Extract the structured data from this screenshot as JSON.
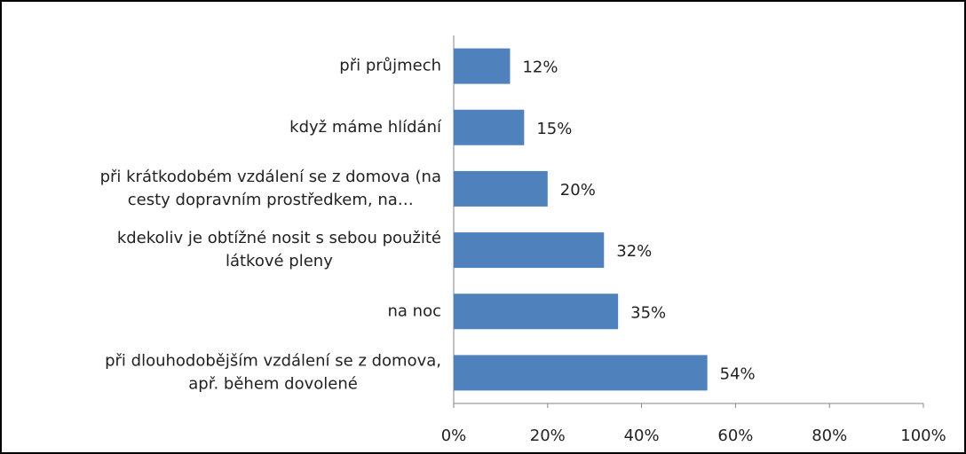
{
  "chart_data": {
    "type": "bar",
    "orientation": "horizontal",
    "categories": [
      "při průjmech",
      "když máme hlídání",
      "při krátkodobém vzdálení se z domova (na\ncesty dopravním prostředkem, na…",
      "kdekoliv je obtížné nosit s sebou použité\nlátkové pleny",
      "na noc",
      "při dlouhodobějším vzdálení se z domova,\např. během dovolené"
    ],
    "values": [
      12,
      15,
      20,
      32,
      35,
      54
    ],
    "value_labels": [
      "12%",
      "15%",
      "20%",
      "32%",
      "35%",
      "54%"
    ],
    "color": "#4f81bd",
    "xlim": [
      0,
      100
    ],
    "xticks": [
      {
        "value": 0,
        "label": "0%"
      },
      {
        "value": 20,
        "label": "20%"
      },
      {
        "value": 40,
        "label": "40%"
      },
      {
        "value": 60,
        "label": "60%"
      },
      {
        "value": 80,
        "label": "80%"
      },
      {
        "value": 100,
        "label": "100%"
      }
    ],
    "grid": false
  }
}
